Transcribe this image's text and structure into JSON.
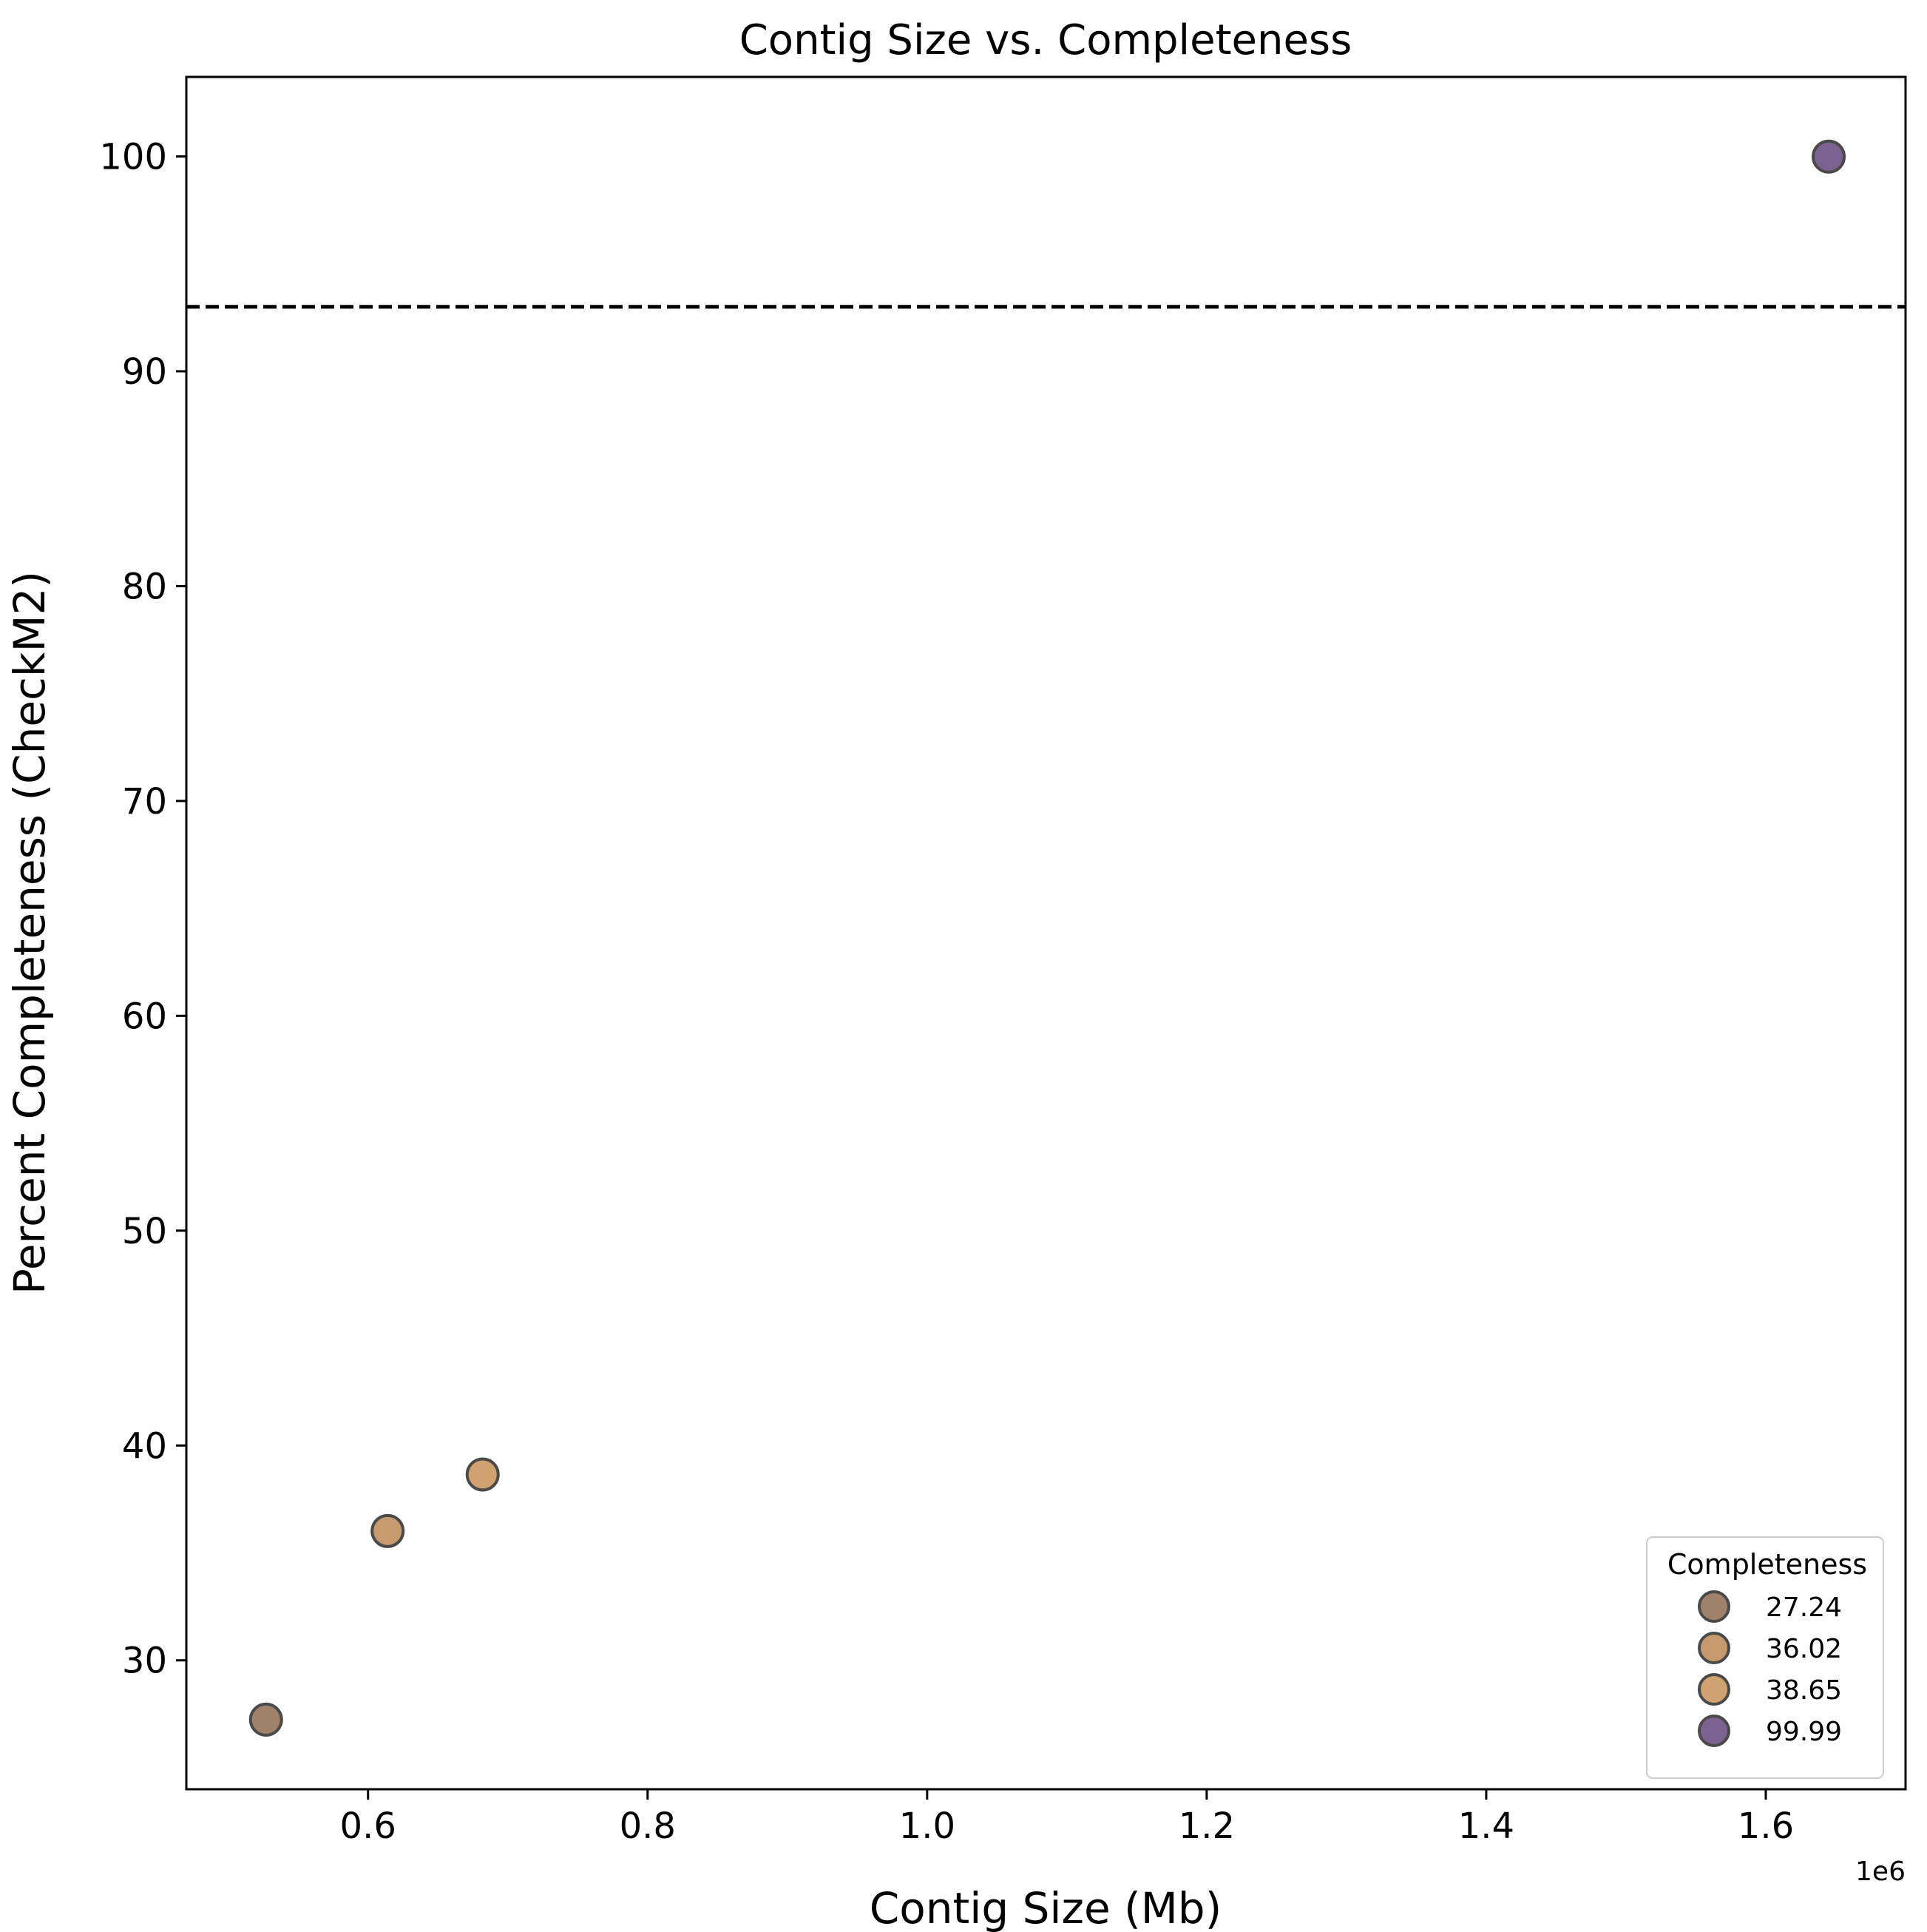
{
  "chart_data": {
    "type": "scatter",
    "title": "Contig Size vs. Completeness",
    "xlabel": "Contig Size (Mb)",
    "ylabel": "Percent Completeness (CheckM2)",
    "x_offset_label": "1e6",
    "xlim": [
      470000,
      1700000
    ],
    "ylim": [
      24,
      103.7
    ],
    "x_ticks": [
      600000,
      800000,
      1000000,
      1200000,
      1400000,
      1600000
    ],
    "x_tick_labels": [
      "0.6",
      "0.8",
      "1.0",
      "1.2",
      "1.4",
      "1.6"
    ],
    "y_ticks": [
      30,
      40,
      50,
      60,
      70,
      80,
      90,
      100
    ],
    "y_tick_labels": [
      "30",
      "40",
      "50",
      "60",
      "70",
      "80",
      "90",
      "100"
    ],
    "points": [
      {
        "x": 527000,
        "y": 27.24,
        "color": "#a0826a"
      },
      {
        "x": 614000,
        "y": 36.02,
        "color": "#c79a6e"
      },
      {
        "x": 682000,
        "y": 38.65,
        "color": "#d0a270"
      },
      {
        "x": 1645000,
        "y": 99.99,
        "color": "#7a6390"
      }
    ],
    "threshold_line": {
      "y": 93,
      "style": "dashed",
      "color": "#000000"
    },
    "grid": false,
    "legend": {
      "title": "Completeness",
      "placement": "bottom-right",
      "entries": [
        {
          "label": "27.24",
          "color": "#a0826a"
        },
        {
          "label": "36.02",
          "color": "#c79a6e"
        },
        {
          "label": "38.65",
          "color": "#d0a270"
        },
        {
          "label": "99.99",
          "color": "#7a6390"
        }
      ]
    },
    "marker_edge_color": "#4a4a4a"
  }
}
